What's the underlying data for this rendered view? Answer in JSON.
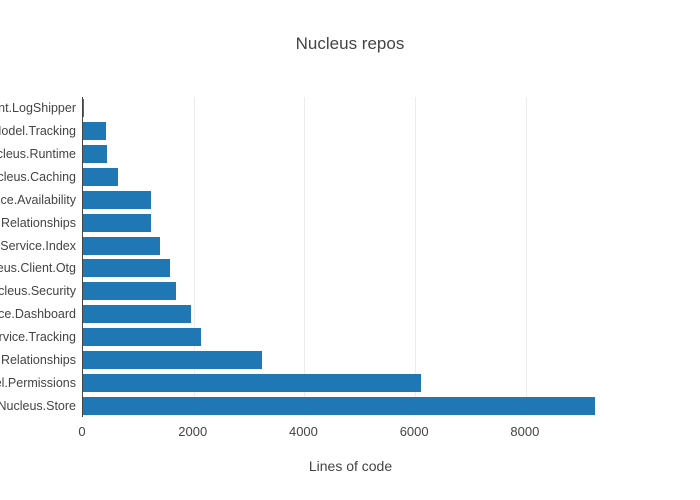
{
  "title": "Nucleus repos",
  "xlabel": "Lines of code",
  "colors": {
    "bar": "#1f77b4",
    "axis_line": "#444444",
    "grid": "#ececec",
    "text": "#444444",
    "background": "#ffffff"
  },
  "chart_data": {
    "type": "bar",
    "orientation": "horizontal",
    "title": "Nucleus repos",
    "xlabel": "Lines of code",
    "ylabel": "",
    "grid": true,
    "legend": false,
    "categories": [
      "nt.LogShipper",
      "Model.Tracking",
      "cleus.Runtime",
      "ucleus.Caching",
      "ice.Availability",
      ".Relationships",
      "s.Service.Index",
      "eus.Client.Otg",
      "ucleus.Security",
      "ice.Dashboard",
      "ervice.Tracking",
      ".Relationships",
      "el.Permissions",
      "Nucleus.Store"
    ],
    "values": [
      20,
      410,
      440,
      630,
      1220,
      1230,
      1390,
      1580,
      1680,
      1950,
      2130,
      3240,
      6100,
      9240
    ],
    "xticks": [
      0,
      2000,
      4000,
      6000,
      8000
    ],
    "xlim": [
      0,
      9700
    ]
  }
}
